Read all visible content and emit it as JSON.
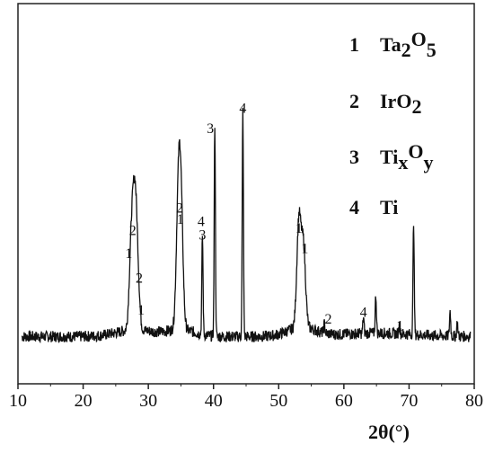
{
  "chart_data": {
    "type": "line",
    "xlabel_main": "2θ",
    "xlabel_unit": "(°)",
    "xlim": [
      10,
      80
    ],
    "x_ticks": [
      10,
      20,
      30,
      40,
      50,
      60,
      70,
      80
    ],
    "x_tick_labels": [
      "10",
      "20",
      "30",
      "40",
      "50",
      "60",
      "70",
      "80"
    ],
    "ylim": [
      0,
      100
    ],
    "grid": false,
    "legend_placement": "top-right",
    "legend": [
      {
        "num": "1",
        "base": "Ta",
        "sub1": "2",
        "mid": "O",
        "sub2": "5"
      },
      {
        "num": "2",
        "base": "IrO",
        "sub1": "2",
        "mid": "",
        "sub2": ""
      },
      {
        "num": "3",
        "base": "Ti",
        "sub1": "x",
        "mid": "O",
        "sub2": "y"
      },
      {
        "num": "4",
        "base": "Ti",
        "sub1": "",
        "mid": "",
        "sub2": ""
      }
    ],
    "peaks": [
      {
        "x": 27.4,
        "y": 36
      },
      {
        "x": 27.9,
        "y": 46
      },
      {
        "x": 28.3,
        "y": 24
      },
      {
        "x": 34.6,
        "y": 51
      },
      {
        "x": 35.0,
        "y": 50
      },
      {
        "x": 38.3,
        "y": 44
      },
      {
        "x": 40.2,
        "y": 94
      },
      {
        "x": 44.5,
        "y": 100
      },
      {
        "x": 53.1,
        "y": 47
      },
      {
        "x": 53.8,
        "y": 35
      },
      {
        "x": 57.0,
        "y": 4
      },
      {
        "x": 63.0,
        "y": 7
      },
      {
        "x": 64.9,
        "y": 17
      },
      {
        "x": 68.5,
        "y": 4
      },
      {
        "x": 70.7,
        "y": 50
      },
      {
        "x": 76.3,
        "y": 11
      },
      {
        "x": 77.4,
        "y": 6
      }
    ],
    "annotations": [
      {
        "text": "1",
        "x": 27.0,
        "y": 37
      },
      {
        "text": "2",
        "x": 27.6,
        "y": 47
      },
      {
        "text": "2",
        "x": 28.6,
        "y": 26
      },
      {
        "text": "1",
        "x": 28.9,
        "y": 12
      },
      {
        "text": "2",
        "x": 34.8,
        "y": 57
      },
      {
        "text": "1",
        "x": 34.9,
        "y": 52
      },
      {
        "text": "4",
        "x": 38.1,
        "y": 51
      },
      {
        "text": "3",
        "x": 38.3,
        "y": 45
      },
      {
        "text": "3",
        "x": 39.5,
        "y": 92
      },
      {
        "text": "4",
        "x": 44.5,
        "y": 101
      },
      {
        "text": "1",
        "x": 53.1,
        "y": 48
      },
      {
        "text": "1",
        "x": 54.0,
        "y": 39
      },
      {
        "text": "2",
        "x": 57.6,
        "y": 8
      },
      {
        "text": "4",
        "x": 63.0,
        "y": 11
      },
      {
        "text": "1",
        "x": 68.6,
        "y": 5
      }
    ]
  }
}
